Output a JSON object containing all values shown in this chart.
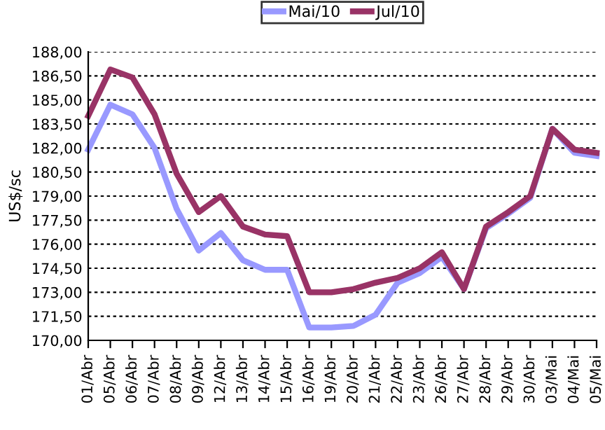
{
  "chart_data": {
    "type": "line",
    "ylabel": "US$/sc",
    "categories": [
      "01/Abr",
      "05/Abr",
      "06/Abr",
      "07/Abr",
      "08/Abr",
      "09/Abr",
      "12/Abr",
      "13/Abr",
      "14/Abr",
      "15/Abr",
      "16/Abr",
      "19/Abr",
      "20/Abr",
      "21/Abr",
      "22/Abr",
      "23/Abr",
      "26/Abr",
      "27/Abr",
      "28/Abr",
      "29/Abr",
      "30/Abr",
      "03/Mai",
      "04/Mai",
      "05/Mai"
    ],
    "series": [
      {
        "name": "Mai/10",
        "color": "#9999ff",
        "values": [
          181.9,
          184.7,
          184.1,
          182.0,
          178.2,
          175.6,
          176.7,
          175.0,
          174.4,
          174.4,
          170.8,
          170.8,
          170.9,
          171.6,
          173.6,
          174.2,
          175.2,
          173.2,
          177.0,
          177.9,
          178.9,
          183.2,
          181.7,
          181.5
        ]
      },
      {
        "name": "Jul/10",
        "color": "#993366",
        "values": [
          184.0,
          186.9,
          186.4,
          184.1,
          180.4,
          178.0,
          179.0,
          177.1,
          176.6,
          176.5,
          173.0,
          173.0,
          173.2,
          173.6,
          173.9,
          174.5,
          175.5,
          173.2,
          177.1,
          178.0,
          179.0,
          183.2,
          181.9,
          181.7
        ]
      }
    ],
    "ylim": [
      170,
      188
    ],
    "yticks": [
      {
        "value": 170,
        "label": "170,00"
      },
      {
        "value": 171.5,
        "label": "171,50"
      },
      {
        "value": 173,
        "label": "173,00"
      },
      {
        "value": 174.5,
        "label": "174,50"
      },
      {
        "value": 176,
        "label": "176,00"
      },
      {
        "value": 177.5,
        "label": "177,50"
      },
      {
        "value": 179,
        "label": "179,00"
      },
      {
        "value": 180.5,
        "label": "180,50"
      },
      {
        "value": 182,
        "label": "182,00"
      },
      {
        "value": 183.5,
        "label": "183,50"
      },
      {
        "value": 185,
        "label": "185,00"
      },
      {
        "value": 186.5,
        "label": "186,50"
      },
      {
        "value": 188,
        "label": "188,00"
      }
    ],
    "grid": "y",
    "legend": "top",
    "marker": "none",
    "line_style": "solid"
  }
}
